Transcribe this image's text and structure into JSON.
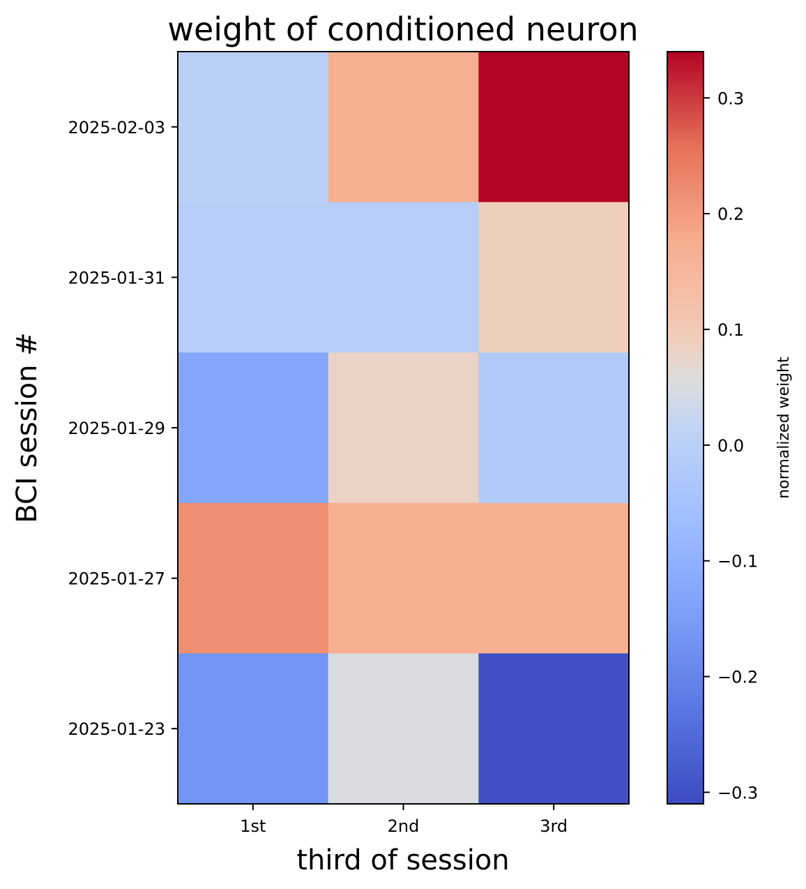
{
  "chart_data": {
    "type": "heatmap",
    "title": "weight of conditioned neuron",
    "xlabel": "third of session",
    "ylabel": "BCI session #",
    "x_categories": [
      "1st",
      "2nd",
      "3rd"
    ],
    "y_categories": [
      "2025-02-03",
      "2025-01-31",
      "2025-01-29",
      "2025-01-27",
      "2025-01-23"
    ],
    "values": [
      [
        0.0,
        0.17,
        0.34
      ],
      [
        -0.01,
        -0.01,
        0.09
      ],
      [
        -0.13,
        0.08,
        -0.02
      ],
      [
        0.22,
        0.17,
        0.17
      ],
      [
        -0.17,
        0.05,
        -0.3
      ]
    ],
    "colorbar": {
      "label": "normalized weight",
      "range": [
        -0.31,
        0.34
      ],
      "ticks": [
        0.3,
        0.2,
        0.1,
        0.0,
        -0.1,
        -0.2,
        -0.3
      ],
      "tick_labels": [
        "0.3",
        "0.2",
        "0.1",
        "0.0",
        "−0.1",
        "−0.2",
        "−0.3"
      ],
      "colormap": "coolwarm"
    },
    "grid": false
  }
}
